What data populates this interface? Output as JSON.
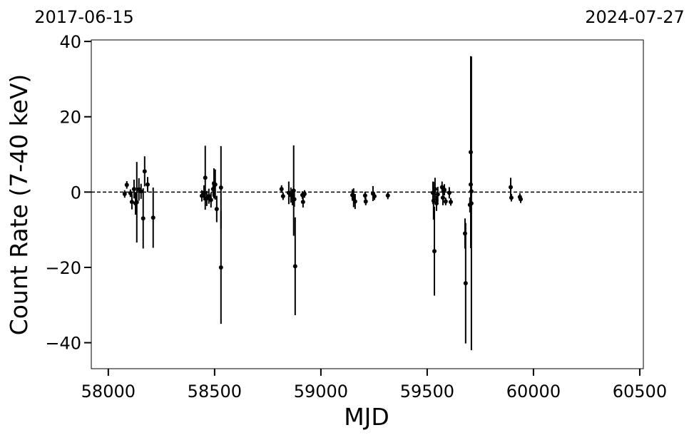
{
  "chart_data": {
    "type": "scatter",
    "top_labels": [
      "2017-06-15",
      "2024-07-27"
    ],
    "xlabel": "MJD",
    "ylabel": "Count Rate (7-40 keV)",
    "xlim": [
      57920,
      60517
    ],
    "ylim": [
      -46.9,
      40.4
    ],
    "xticks": [
      58000,
      58500,
      59000,
      59500,
      60000,
      60500
    ],
    "yticks": [
      {
        "value": -40,
        "label": "−40"
      },
      {
        "value": -20,
        "label": "−20"
      },
      0,
      20,
      40
    ],
    "hline": 0,
    "color": "#000000",
    "x": [
      58077,
      58087,
      58104,
      58111,
      58121,
      58128,
      58134,
      58144,
      58154,
      58164,
      58171,
      58185,
      58211,
      58440,
      58450,
      58456,
      58463,
      58473,
      58483,
      58493,
      58497,
      58503,
      58510,
      58530,
      58530,
      58815,
      58822,
      58849,
      58859,
      58866,
      58872,
      58879,
      58875,
      58913,
      58916,
      58923,
      59148,
      59154,
      59161,
      59208,
      59211,
      59245,
      59252,
      59315,
      59527,
      59530,
      59534,
      59537,
      59544,
      59550,
      59570,
      59574,
      59581,
      59587,
      59604,
      59611,
      59678,
      59681,
      59701,
      59705,
      59705,
      59708,
      59708,
      59893,
      59896,
      59936,
      59940
    ],
    "values": [
      -0.5,
      1.9,
      -0.3,
      -2.6,
      0.8,
      -3,
      -2.7,
      0.7,
      0.2,
      -7,
      5.5,
      2,
      -6.8,
      -1,
      -0.2,
      3.8,
      -1.7,
      -1.1,
      -2.1,
      0.8,
      2.3,
      2,
      -4.5,
      1.2,
      -20,
      0.8,
      -1.1,
      -0.2,
      -0.8,
      -1.5,
      0.4,
      -19.7,
      -1.9,
      -0.8,
      -2.6,
      -0.5,
      -0.8,
      -1.5,
      -2.5,
      -0.9,
      -2.5,
      -0.4,
      -1.1,
      -0.9,
      -0.2,
      -2.3,
      -15.7,
      0.8,
      -3,
      -0.6,
      1.3,
      -1.5,
      0.6,
      -2.5,
      -0.2,
      -2.6,
      -11,
      -24.2,
      -3.4,
      10.6,
      2,
      0.2,
      -3,
      1.3,
      -1.5,
      -1.3,
      -1.9
    ],
    "errors": [
      1,
      1,
      1,
      2,
      2.5,
      3,
      10.7,
      3,
      2,
      8,
      4,
      2,
      8,
      1.5,
      2,
      8.5,
      2,
      2,
      2,
      2,
      4,
      4,
      3.5,
      11,
      15,
      1,
      1,
      3,
      2,
      2,
      12,
      13,
      2,
      1,
      1.5,
      1,
      1.5,
      2.5,
      2,
      1,
      1,
      2,
      1,
      1,
      3,
      5,
      11.8,
      3,
      2,
      2,
      1.5,
      2,
      1.5,
      1,
      1.5,
      1,
      4,
      16,
      2,
      25.5,
      1,
      1.5,
      39,
      2.5,
      1,
      1,
      1
    ]
  }
}
